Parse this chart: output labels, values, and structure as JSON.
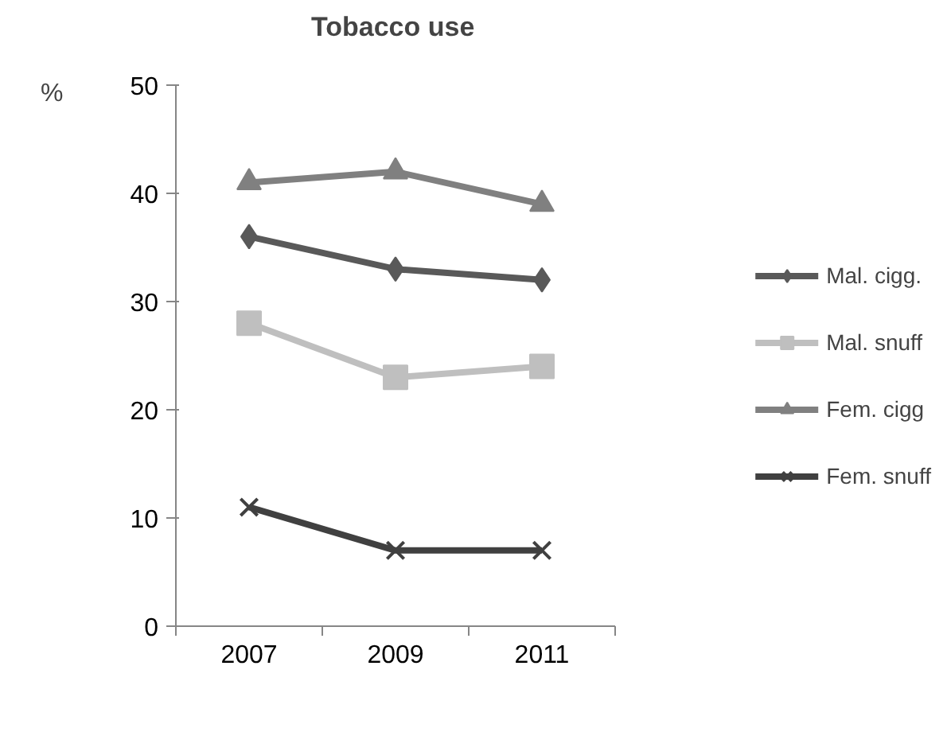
{
  "chart_data": {
    "type": "line",
    "title": "Tobacco use",
    "ylabel": "%",
    "categories": [
      "2007",
      "2009",
      "2011"
    ],
    "series": [
      {
        "name": "Mal. cigg.",
        "color": "#595959",
        "marker": "diamond",
        "values": [
          36,
          33,
          32
        ]
      },
      {
        "name": "Mal. snuff",
        "color": "#bfbfbf",
        "marker": "square",
        "values": [
          28,
          23,
          24
        ]
      },
      {
        "name": "Fem. cigg",
        "color": "#808080",
        "marker": "triangle",
        "values": [
          41,
          42,
          39
        ]
      },
      {
        "name": "Fem. snuff",
        "color": "#404040",
        "marker": "cross",
        "values": [
          11,
          7,
          7
        ]
      }
    ],
    "ylim": [
      0,
      50
    ],
    "yticks": [
      0,
      10,
      20,
      30,
      40,
      50
    ],
    "grid": false,
    "legend": "right",
    "line_style": "solid"
  }
}
